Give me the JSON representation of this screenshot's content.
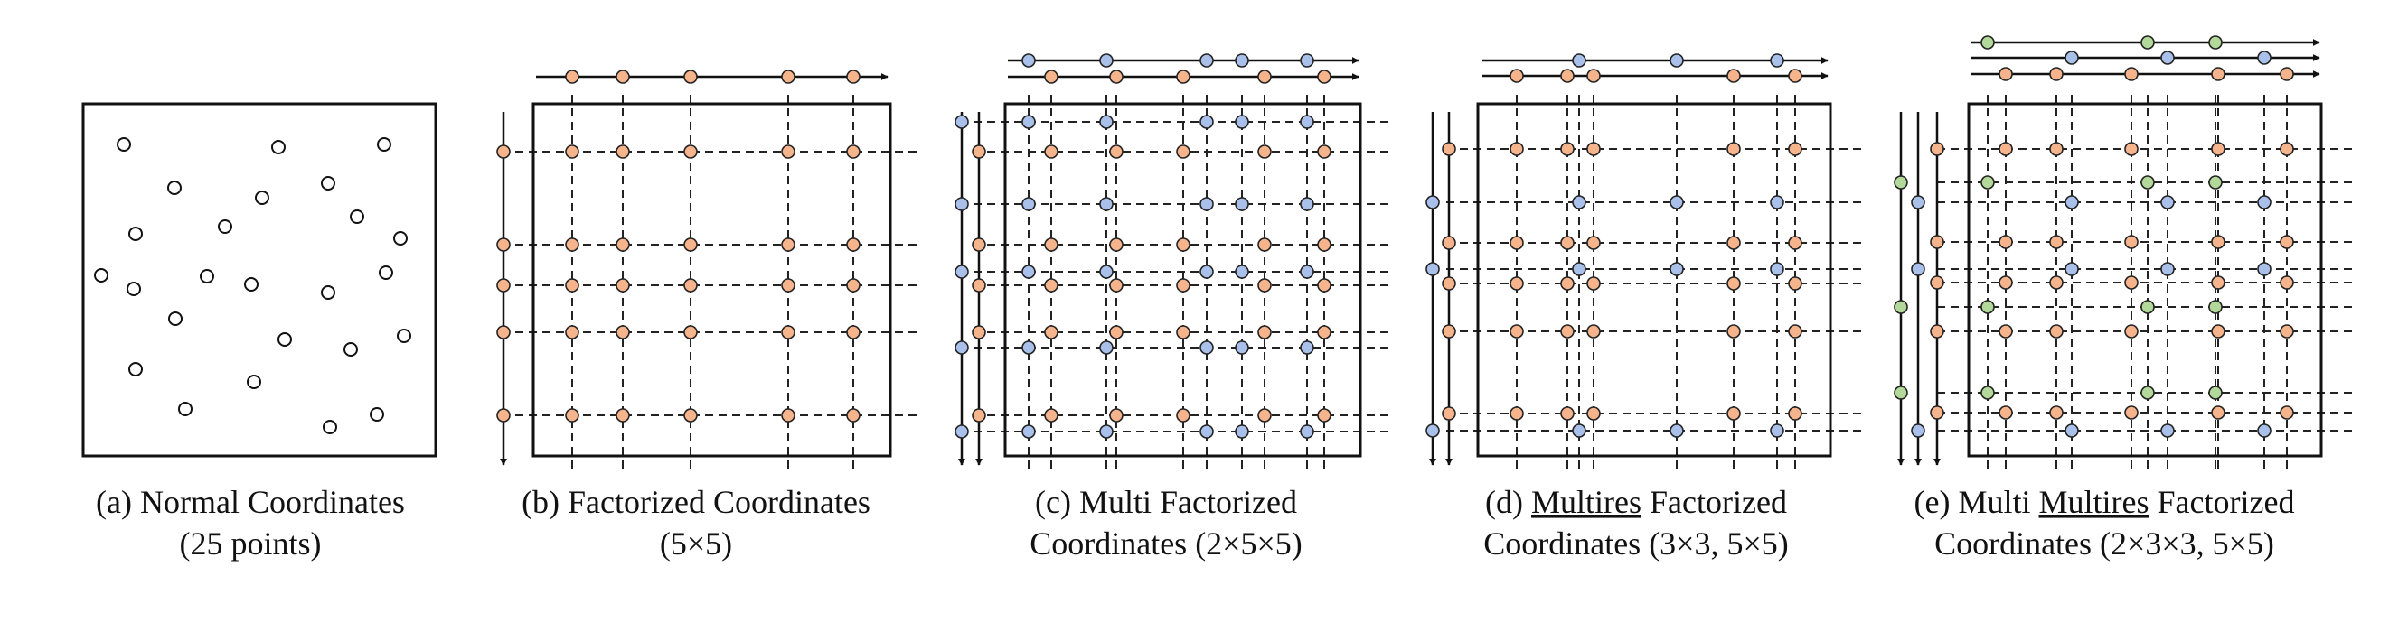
{
  "captions": [
    {
      "line1": "(a) Normal Coordinates",
      "line2": "(25 points)"
    },
    {
      "line1": "(b) Factorized Coordinates",
      "line2": "(5×5)"
    },
    {
      "line1": "(c) Multi Factorized",
      "line2": "Coordinates (2×5×5)"
    },
    {
      "line1a": "(d) ",
      "line1b": "Multires",
      "line1c": " Factorized",
      "line2": "Coordinates (3×3, 5×5)"
    },
    {
      "line1a": "(e) Multi ",
      "line1b": "Multires",
      "line1c": " Factorized",
      "line2": "Coordinates (2×3×3, 5×5)"
    }
  ],
  "colors": {
    "orange": "#f6b48c",
    "blue": "#a9c0ea",
    "green": "#b2d89a",
    "line": "#111111",
    "marker_stroke": "#222222"
  },
  "panels": {
    "a": {
      "points": 25
    },
    "b": {
      "grid": "5x5"
    },
    "c": {
      "grids": [
        "5x5",
        "5x5"
      ]
    },
    "d": {
      "grids": [
        "5x5",
        "3x3"
      ]
    },
    "e": {
      "grids": [
        "5x5",
        "3x3",
        "3x3"
      ]
    }
  }
}
